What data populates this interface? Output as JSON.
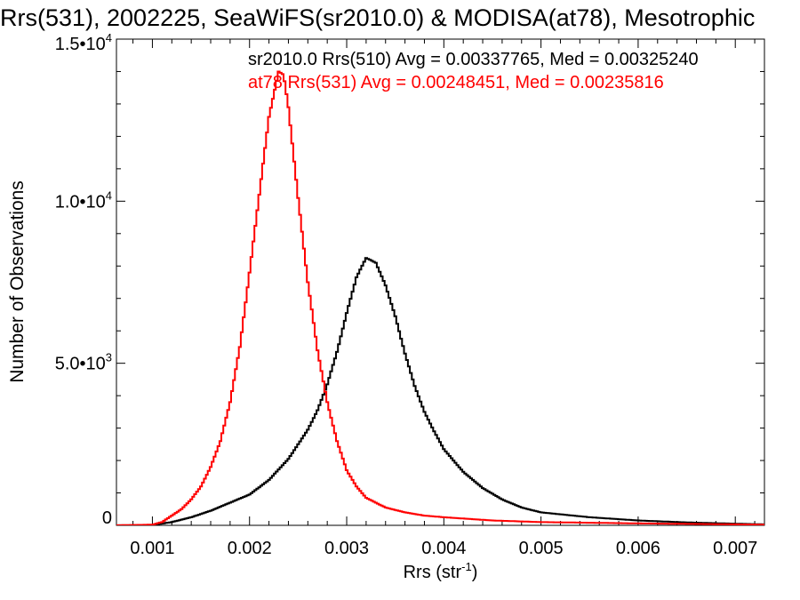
{
  "chart_data": {
    "type": "line",
    "title": "Rrs(531), 2002225, SeaWiFS(sr2010.0) & MODISA(at78), Mesotrophic",
    "xlabel": "Rrs (str",
    "xlabel_sup": "-1",
    "xlabel_end": ")",
    "ylabel": "Number of Observations",
    "xlim": [
      0.00063,
      0.0073
    ],
    "ylim": [
      0,
      15000
    ],
    "x_ticks": [
      0.001,
      0.002,
      0.003,
      0.004,
      0.005,
      0.006,
      0.007
    ],
    "x_tick_labels": [
      "0.001",
      "0.002",
      "0.003",
      "0.004",
      "0.005",
      "0.006",
      "0.007"
    ],
    "y_ticks": [
      {
        "value": 0,
        "base": "0",
        "exp": ""
      },
      {
        "value": 5000,
        "base": "5.0•10",
        "exp": "3"
      },
      {
        "value": 10000,
        "base": "1.0•10",
        "exp": "4"
      },
      {
        "value": 15000,
        "base": "1.5•10",
        "exp": "4"
      }
    ],
    "step_style": true,
    "grid": false,
    "legend_placement": "top-right",
    "series": [
      {
        "name": "sr2010.0 Rrs(510) Avg = 0.00337765, Med = 0.00325240",
        "color": "#000000",
        "x": [
          0.0006,
          0.001,
          0.0012,
          0.0014,
          0.0016,
          0.0018,
          0.002,
          0.0022,
          0.0024,
          0.0026,
          0.0027,
          0.0028,
          0.0029,
          0.003,
          0.0031,
          0.0032,
          0.0033,
          0.0034,
          0.0035,
          0.0036,
          0.0037,
          0.0038,
          0.0039,
          0.004,
          0.0042,
          0.0044,
          0.0046,
          0.0048,
          0.005,
          0.0055,
          0.006,
          0.0065,
          0.007,
          0.0073
        ],
        "y": [
          0,
          10,
          100,
          250,
          450,
          700,
          950,
          1400,
          2050,
          2950,
          3550,
          4350,
          5350,
          6550,
          7650,
          8250,
          8100,
          7400,
          6450,
          5300,
          4300,
          3500,
          2900,
          2350,
          1650,
          1150,
          800,
          550,
          400,
          250,
          150,
          90,
          50,
          30
        ]
      },
      {
        "name": "at78 Rrs(531) Avg = 0.00248451, Med = 0.00235816",
        "color": "#ff0000",
        "x": [
          0.0006,
          0.001,
          0.0011,
          0.0012,
          0.0013,
          0.0014,
          0.0015,
          0.0016,
          0.0017,
          0.0018,
          0.0019,
          0.002,
          0.0021,
          0.0022,
          0.0023,
          0.00235,
          0.0024,
          0.0025,
          0.0026,
          0.0027,
          0.0028,
          0.0029,
          0.003,
          0.0031,
          0.0032,
          0.0034,
          0.0036,
          0.0038,
          0.004,
          0.0045,
          0.005,
          0.006,
          0.007,
          0.0073
        ],
        "y": [
          0,
          20,
          100,
          300,
          500,
          800,
          1200,
          1800,
          2600,
          3800,
          5500,
          7800,
          10200,
          12600,
          14000,
          13900,
          12900,
          10100,
          7500,
          5400,
          3800,
          2600,
          1700,
          1200,
          850,
          550,
          400,
          300,
          250,
          150,
          100,
          60,
          30,
          20
        ]
      }
    ]
  }
}
